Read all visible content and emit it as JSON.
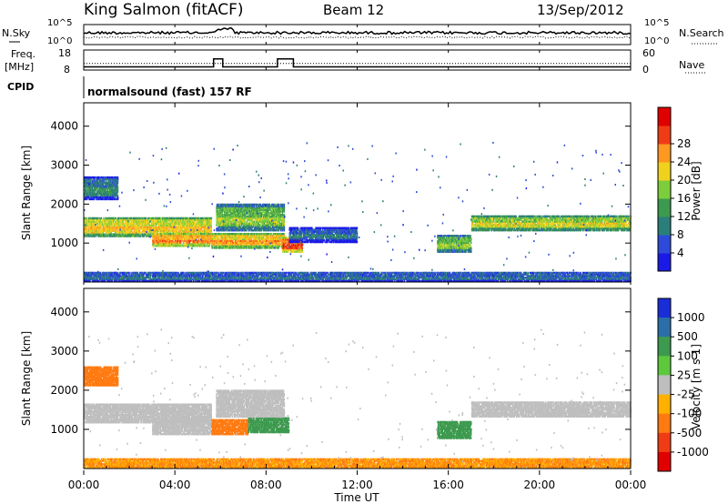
{
  "header": {
    "station": "King Salmon (fitACF)",
    "beam": "Beam 12",
    "date": "13/Sep/2012",
    "cpid_label": "CPID",
    "cpid_value": "normalsound (fast) 157 RF"
  },
  "panel_labels": {
    "nsky": "N.Sky",
    "freq_line1": "Freq.",
    "freq_line2": "[MHz]",
    "nsearch": "N.Search",
    "nave": "Nave"
  },
  "chart_data": [
    {
      "type": "line",
      "name": "noise-panel",
      "y_ticks_left": [
        "10^5",
        "10^0"
      ],
      "y_ticks_right": [
        "10^5",
        "10^0"
      ],
      "series": [
        {
          "name": "N.Sky",
          "style": "solid",
          "approx_level": "high, fluctuating",
          "bump_hours": [
            5.8,
            6.6
          ]
        },
        {
          "name": "N.Search",
          "style": "dotted",
          "approx_level": "below N.Sky"
        }
      ]
    },
    {
      "type": "line",
      "name": "freq-nave-panel",
      "y_ticks_left": [
        "18",
        "8"
      ],
      "y_ticks_right": [
        "60",
        "0"
      ],
      "series": [
        {
          "name": "Freq.",
          "style": "solid",
          "points": [
            [
              0,
              10.5
            ],
            [
              5.7,
              10.5
            ],
            [
              5.7,
              14.5
            ],
            [
              6.1,
              14.5
            ],
            [
              6.1,
              10.5
            ],
            [
              8.5,
              10.5
            ],
            [
              8.5,
              14.5
            ],
            [
              9.2,
              14.5
            ],
            [
              9.2,
              10.5
            ],
            [
              24,
              10.5
            ]
          ]
        },
        {
          "name": "Nave",
          "style": "dotted",
          "points": [
            [
              0,
              20
            ],
            [
              24,
              20
            ]
          ]
        }
      ]
    },
    {
      "type": "heatmap",
      "name": "power-panel",
      "ylabel": "Slant Range [km]",
      "ylim": [
        0,
        4600
      ],
      "y_ticks": [
        1000,
        2000,
        3000,
        4000
      ],
      "colorbar_label": "Power [dB]",
      "colorbar_ticks": [
        "4",
        "8",
        "12",
        "16",
        "20",
        "24",
        "28"
      ],
      "colorbar_colors": [
        "#1a1ae6",
        "#2d4bd8",
        "#2a7f7a",
        "#3c9a4e",
        "#7ccd3c",
        "#f0d21e",
        "#ff9820",
        "#f03c14",
        "#e00000"
      ],
      "echo_bands": [
        {
          "t0": 0.0,
          "t1": 5.6,
          "r0": 1150,
          "r1": 1650,
          "power": 18
        },
        {
          "t0": 3.0,
          "t1": 5.6,
          "r0": 900,
          "r1": 1250,
          "power": 22
        },
        {
          "t0": 5.6,
          "t1": 8.8,
          "r0": 850,
          "r1": 1250,
          "power": 20
        },
        {
          "t0": 5.8,
          "t1": 8.8,
          "r0": 1300,
          "r1": 2000,
          "power": 14
        },
        {
          "t0": 8.7,
          "t1": 9.6,
          "r0": 750,
          "r1": 1150,
          "power": 24
        },
        {
          "t0": 9.0,
          "t1": 12.0,
          "r0": 1000,
          "r1": 1400,
          "power": 6
        },
        {
          "t0": 15.5,
          "t1": 17.0,
          "r0": 750,
          "r1": 1200,
          "power": 14
        },
        {
          "t0": 17.0,
          "t1": 24.0,
          "r0": 1300,
          "r1": 1700,
          "power": 16
        },
        {
          "t0": 0.0,
          "t1": 1.5,
          "r0": 2100,
          "r1": 2700,
          "power": 8
        },
        {
          "t0": 0.0,
          "t1": 24.0,
          "r0": 0,
          "r1": 250,
          "power": 6
        }
      ]
    },
    {
      "type": "heatmap",
      "name": "velocity-panel",
      "ylabel": "Slant Range [km]",
      "ylim": [
        0,
        4600
      ],
      "y_ticks": [
        1000,
        2000,
        3000,
        4000
      ],
      "colorbar_label": "Velocity [m s-1]",
      "colorbar_ticks": [
        "1000",
        "500",
        "100",
        "25",
        "-25",
        "-100",
        "-500",
        "-1000"
      ],
      "colorbar_colors": [
        "#1a2ed8",
        "#2a6fa8",
        "#3c9a4e",
        "#5cc83c",
        "#bebebe",
        "#ffb000",
        "#ff7a10",
        "#f03c14",
        "#e00000"
      ],
      "echo_bands": [
        {
          "t0": 0.0,
          "t1": 5.6,
          "r0": 1150,
          "r1": 1650,
          "velocity": 0
        },
        {
          "t0": 3.0,
          "t1": 5.6,
          "r0": 850,
          "r1": 1250,
          "velocity": 0
        },
        {
          "t0": 5.6,
          "t1": 7.2,
          "r0": 850,
          "r1": 1250,
          "velocity": -300
        },
        {
          "t0": 7.2,
          "t1": 9.0,
          "r0": 900,
          "r1": 1300,
          "velocity": 150
        },
        {
          "t0": 5.8,
          "t1": 8.8,
          "r0": 1300,
          "r1": 2000,
          "velocity": 0
        },
        {
          "t0": 15.5,
          "t1": 17.0,
          "r0": 750,
          "r1": 1200,
          "velocity": 150
        },
        {
          "t0": 17.0,
          "t1": 24.0,
          "r0": 1300,
          "r1": 1700,
          "velocity": 0
        },
        {
          "t0": 0.0,
          "t1": 1.5,
          "r0": 2100,
          "r1": 2600,
          "velocity": -300
        },
        {
          "t0": 0.0,
          "t1": 24.0,
          "r0": 0,
          "r1": 250,
          "velocity": -150
        }
      ]
    }
  ],
  "x_axis": {
    "label": "Time UT",
    "xlim": [
      0,
      24
    ],
    "ticks": [
      0,
      4,
      8,
      12,
      16,
      20,
      24
    ],
    "tick_labels": [
      "00:00",
      "04:00",
      "08:00",
      "12:00",
      "16:00",
      "20:00",
      "00:00"
    ]
  }
}
